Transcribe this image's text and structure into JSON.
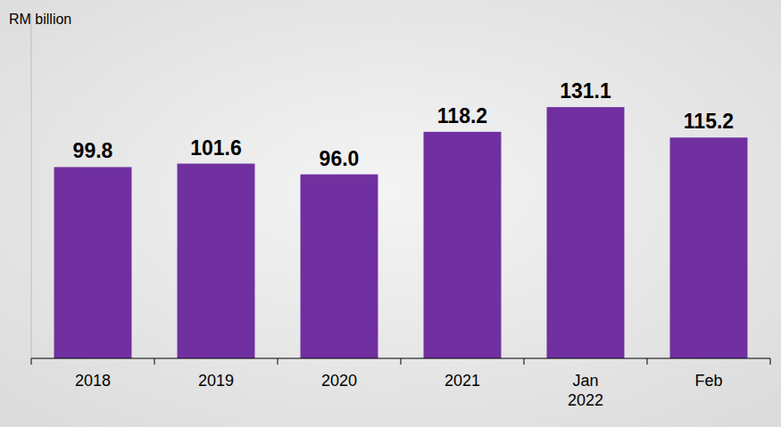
{
  "chart_data": {
    "type": "bar",
    "ylabel": "RM billion",
    "categories": [
      "2018",
      "2019",
      "2020",
      "2021",
      "Jan\n2022",
      "Feb"
    ],
    "values": [
      99.8,
      101.6,
      96.0,
      118.2,
      131.1,
      115.2
    ],
    "value_labels": [
      "99.8",
      "101.6",
      "96.0",
      "118.2",
      "131.1",
      "115.2"
    ],
    "color": "#7030a0",
    "ylim": [
      0,
      180
    ],
    "yticks": [],
    "data_labels": true,
    "tick_labels": "x",
    "grid": false
  }
}
